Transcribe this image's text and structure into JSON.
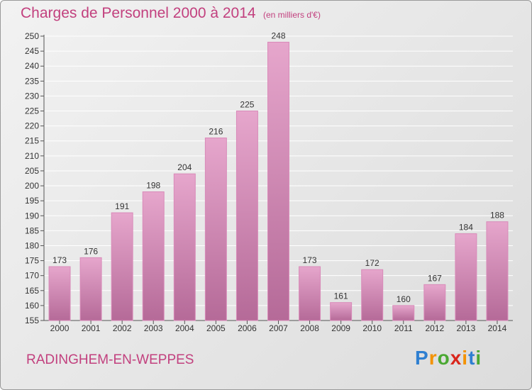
{
  "header": {
    "title": "Charges de Personnel 2000 à 2014",
    "subtitle": "(en milliers d'€)"
  },
  "footer": {
    "town": "RADINGHEM-EN-WEPPES",
    "logo": {
      "letters": [
        "P",
        "r",
        "o",
        "x",
        "i",
        "t",
        "i"
      ],
      "colors": [
        "#2e7fd1",
        "#f39200",
        "#4aa832",
        "#d9261c",
        "#f39200",
        "#2e7fd1",
        "#4aa832"
      ]
    }
  },
  "colors": {
    "accent": "#c2407e",
    "bar_light": "#e6a6cc",
    "bar_dark": "#b56a98"
  },
  "chart_data": {
    "type": "bar",
    "categories": [
      "2000",
      "2001",
      "2002",
      "2003",
      "2004",
      "2005",
      "2006",
      "2007",
      "2008",
      "2009",
      "2010",
      "2011",
      "2012",
      "2013",
      "2014"
    ],
    "values": [
      173,
      176,
      191,
      198,
      204,
      216,
      225,
      248,
      173,
      161,
      172,
      160,
      167,
      184,
      188
    ],
    "title": "Charges de Personnel 2000 à 2014",
    "ylabel": "",
    "xlabel": "",
    "ylim": [
      155,
      250
    ],
    "yticks": [
      155,
      160,
      165,
      170,
      175,
      180,
      185,
      190,
      195,
      200,
      205,
      210,
      215,
      220,
      225,
      230,
      235,
      240,
      245,
      250
    ],
    "grid": true
  }
}
